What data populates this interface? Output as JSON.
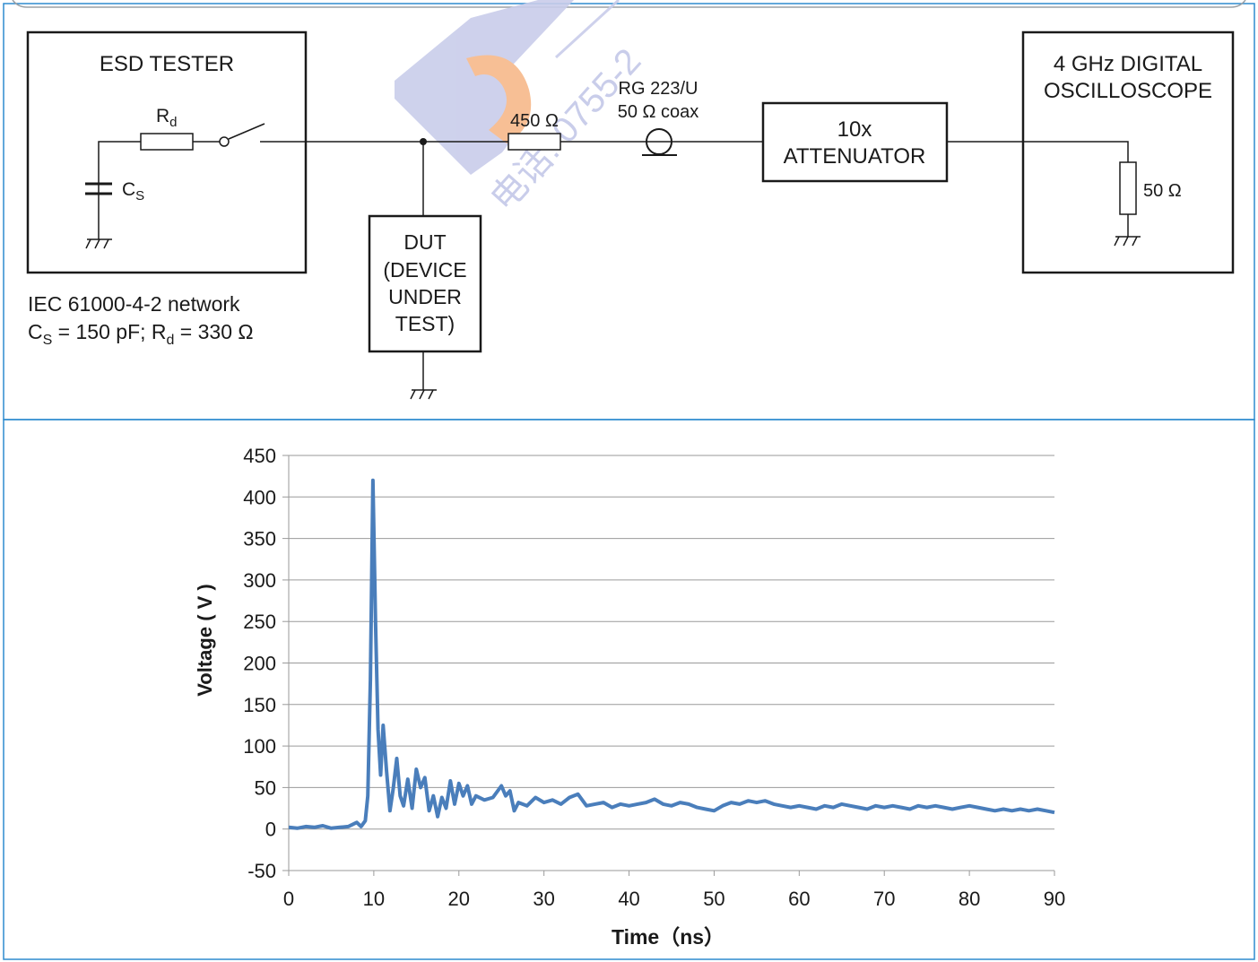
{
  "colors": {
    "frame": "#2e8bcf",
    "ink": "#1a1a1a",
    "grid": "#9a9a9a",
    "trace": "#4a7ebb",
    "watermark_blue": "#c9cdea",
    "watermark_orange": "#f7b98a"
  },
  "circuit": {
    "esd_tester": {
      "title": "ESD TESTER",
      "rd_label": "R",
      "rd_sub": "d",
      "cs_label": "C",
      "cs_sub": "S"
    },
    "network_note": {
      "line1": "IEC 61000-4-2 network",
      "line2_cs": "C",
      "line2_cs_sub": "S",
      "line2_mid": " = 150 pF; R",
      "line2_rd_sub": "d",
      "line2_end": " = 330 Ω"
    },
    "dut": {
      "line1": "DUT",
      "line2": "(DEVICE",
      "line3": "UNDER",
      "line4": "TEST)"
    },
    "series_resistor": "450 Ω",
    "coax": {
      "line1": "RG 223/U",
      "line2": "50 Ω coax"
    },
    "attenuator": {
      "line1": "10x",
      "line2": "ATTENUATOR"
    },
    "oscilloscope": {
      "line1": "4 GHz DIGITAL",
      "line2": "OSCILLOSCOPE",
      "termination": "50 Ω"
    }
  },
  "watermark": {
    "text": "电话: 0755-2"
  },
  "chart_data": {
    "type": "line",
    "title": "",
    "xlabel": "Time（ns）",
    "ylabel": "Voltage ( V )",
    "xlim": [
      0,
      90
    ],
    "ylim": [
      -50,
      450
    ],
    "xticks": [
      0,
      10,
      20,
      30,
      40,
      50,
      60,
      70,
      80,
      90
    ],
    "yticks": [
      -50,
      0,
      50,
      100,
      150,
      200,
      250,
      300,
      350,
      400,
      450
    ],
    "grid": true,
    "legend": "none",
    "series": [
      {
        "x": [
          0,
          1,
          2,
          3,
          4,
          5,
          6,
          7,
          8,
          8.5,
          9,
          9.3,
          9.6,
          9.9,
          10.2,
          10.5,
          10.8,
          11.1,
          11.5,
          11.9,
          12.3,
          12.7,
          13.1,
          13.5,
          14,
          14.5,
          15,
          15.5,
          16,
          16.5,
          17,
          17.5,
          18,
          18.5,
          19,
          19.5,
          20,
          20.5,
          21,
          21.5,
          22,
          23,
          24,
          25,
          25.5,
          26,
          26.5,
          27,
          28,
          29,
          30,
          31,
          32,
          33,
          34,
          35,
          36,
          37,
          38,
          39,
          40,
          41,
          42,
          43,
          44,
          45,
          46,
          47,
          48,
          49,
          50,
          51,
          52,
          53,
          54,
          55,
          56,
          57,
          58,
          59,
          60,
          61,
          62,
          63,
          64,
          65,
          66,
          67,
          68,
          69,
          70,
          71,
          72,
          73,
          74,
          75,
          76,
          77,
          78,
          79,
          80,
          81,
          82,
          83,
          84,
          85,
          86,
          87,
          88,
          89,
          90
        ],
        "y": [
          2,
          1,
          3,
          2,
          4,
          1,
          2,
          3,
          8,
          3,
          10,
          40,
          180,
          420,
          250,
          120,
          65,
          125,
          70,
          22,
          50,
          85,
          40,
          28,
          60,
          25,
          72,
          50,
          62,
          22,
          40,
          15,
          38,
          25,
          58,
          30,
          55,
          40,
          52,
          30,
          40,
          35,
          38,
          52,
          40,
          46,
          22,
          32,
          28,
          38,
          32,
          35,
          30,
          38,
          42,
          28,
          30,
          32,
          26,
          30,
          28,
          30,
          32,
          36,
          30,
          28,
          32,
          30,
          26,
          24,
          22,
          28,
          32,
          30,
          34,
          32,
          34,
          30,
          28,
          26,
          28,
          26,
          24,
          28,
          26,
          30,
          28,
          26,
          24,
          28,
          26,
          28,
          26,
          24,
          28,
          26,
          28,
          26,
          24,
          26,
          28,
          26,
          24,
          22,
          24,
          22,
          24,
          22,
          24,
          22,
          20
        ]
      }
    ]
  }
}
